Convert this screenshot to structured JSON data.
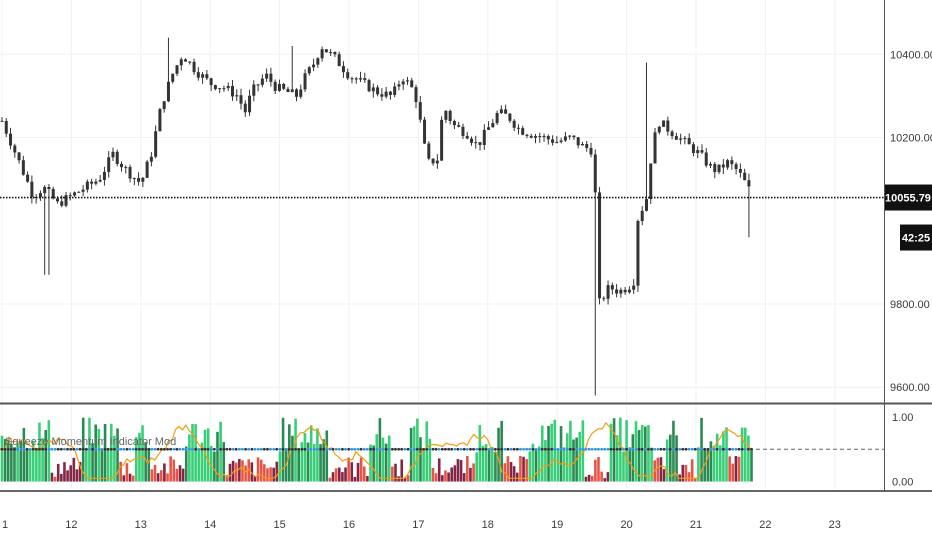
{
  "chart_data": [
    {
      "type": "candlestick",
      "title": "",
      "xlabel": "",
      "ylabel": "",
      "x_tick_labels": [
        "1",
        "12",
        "13",
        "14",
        "15",
        "16",
        "17",
        "18",
        "19",
        "20",
        "21",
        "22",
        "23"
      ],
      "y_ticks": [
        9600,
        9800,
        10200,
        10400
      ],
      "y_tick_labels": [
        "9600.00",
        "9800.00",
        "10200.00",
        "10400.00"
      ],
      "ylim": [
        9550,
        10480
      ],
      "grid": true,
      "last_price": 10055.79,
      "last_price_label": "10055.79",
      "countdown_label": "42:25",
      "price_path": [
        [
          0.0,
          10240
        ],
        [
          0.3,
          10120
        ],
        [
          0.45,
          10060
        ],
        [
          0.6,
          10080
        ],
        [
          0.8,
          10040
        ],
        [
          1.0,
          10060
        ],
        [
          1.2,
          10080
        ],
        [
          1.4,
          10100
        ],
        [
          1.6,
          10160
        ],
        [
          1.8,
          10120
        ],
        [
          2.0,
          10090
        ],
        [
          2.15,
          10160
        ],
        [
          2.3,
          10280
        ],
        [
          2.45,
          10350
        ],
        [
          2.6,
          10400
        ],
        [
          2.8,
          10360
        ],
        [
          3.0,
          10330
        ],
        [
          3.2,
          10320
        ],
        [
          3.4,
          10300
        ],
        [
          3.5,
          10260
        ],
        [
          3.6,
          10310
        ],
        [
          3.8,
          10350
        ],
        [
          3.95,
          10320
        ],
        [
          4.1,
          10310
        ],
        [
          4.25,
          10300
        ],
        [
          4.35,
          10340
        ],
        [
          4.5,
          10380
        ],
        [
          4.6,
          10420
        ],
        [
          4.8,
          10390
        ],
        [
          5.0,
          10350
        ],
        [
          5.2,
          10330
        ],
        [
          5.4,
          10310
        ],
        [
          5.6,
          10300
        ],
        [
          5.7,
          10320
        ],
        [
          5.75,
          10350
        ],
        [
          5.9,
          10320
        ],
        [
          6.0,
          10280
        ],
        [
          6.05,
          10200
        ],
        [
          6.15,
          10140
        ],
        [
          6.3,
          10150
        ],
        [
          6.35,
          10280
        ],
        [
          6.5,
          10230
        ],
        [
          6.7,
          10210
        ],
        [
          6.85,
          10180
        ],
        [
          7.0,
          10220
        ],
        [
          7.15,
          10260
        ],
        [
          7.3,
          10250
        ],
        [
          7.45,
          10220
        ],
        [
          7.6,
          10210
        ],
        [
          7.8,
          10200
        ],
        [
          8.0,
          10190
        ],
        [
          8.2,
          10200
        ],
        [
          8.35,
          10180
        ],
        [
          8.5,
          10170
        ],
        [
          8.55,
          10060
        ],
        [
          8.6,
          9800
        ],
        [
          8.75,
          9840
        ],
        [
          8.9,
          9830
        ],
        [
          9.1,
          9850
        ],
        [
          9.15,
          10000
        ],
        [
          9.3,
          10060
        ],
        [
          9.35,
          10150
        ],
        [
          9.45,
          10240
        ],
        [
          9.6,
          10220
        ],
        [
          9.75,
          10200
        ],
        [
          9.9,
          10180
        ],
        [
          10.05,
          10160
        ],
        [
          10.2,
          10130
        ],
        [
          10.3,
          10120
        ],
        [
          10.45,
          10140
        ],
        [
          10.6,
          10120
        ],
        [
          10.75,
          10080
        ],
        [
          10.82,
          10056
        ]
      ],
      "wick_extremes": [
        {
          "x": 8.56,
          "low": 9580
        },
        {
          "x": 9.27,
          "high": 10380
        },
        {
          "x": 10.8,
          "low": 9960
        },
        {
          "x": 0.65,
          "low": 9870
        },
        {
          "x": 2.4,
          "high": 10440
        },
        {
          "x": 4.2,
          "high": 10420
        }
      ]
    },
    {
      "type": "bar",
      "title": "Squeeze Momentum Indicator Mod",
      "y_ticks": [
        0,
        1
      ],
      "y_tick_labels": [
        "0.00",
        "1.00"
      ],
      "ylim": [
        -0.1,
        1.2
      ],
      "dashed_reference": 0.5,
      "colors": {
        "strong_up": "#2ecc71",
        "weak_up": "#1e8449",
        "strong_down": "#e74c3c",
        "weak_down": "#7b1a3a",
        "signal": "#f39c12",
        "dots": "#3498db"
      },
      "green_segments": [
        [
          0.0,
          0.7
        ],
        [
          1.15,
          1.7
        ],
        [
          1.9,
          2.15
        ],
        [
          2.65,
          3.2
        ],
        [
          4.0,
          4.7
        ],
        [
          5.3,
          5.6
        ],
        [
          5.85,
          6.2
        ],
        [
          6.8,
          7.2
        ],
        [
          7.6,
          8.4
        ],
        [
          8.75,
          9.4
        ],
        [
          9.55,
          9.75
        ],
        [
          10.0,
          10.45
        ],
        [
          10.65,
          10.82
        ]
      ],
      "red_segments": [
        [
          0.7,
          1.15
        ],
        [
          1.7,
          1.9
        ],
        [
          2.15,
          2.65
        ],
        [
          3.2,
          4.0
        ],
        [
          4.7,
          5.3
        ],
        [
          5.6,
          5.85
        ],
        [
          6.2,
          6.8
        ],
        [
          7.2,
          7.6
        ],
        [
          8.4,
          8.75
        ],
        [
          9.4,
          9.55
        ],
        [
          9.75,
          10.0
        ],
        [
          10.45,
          10.65
        ]
      ]
    }
  ]
}
